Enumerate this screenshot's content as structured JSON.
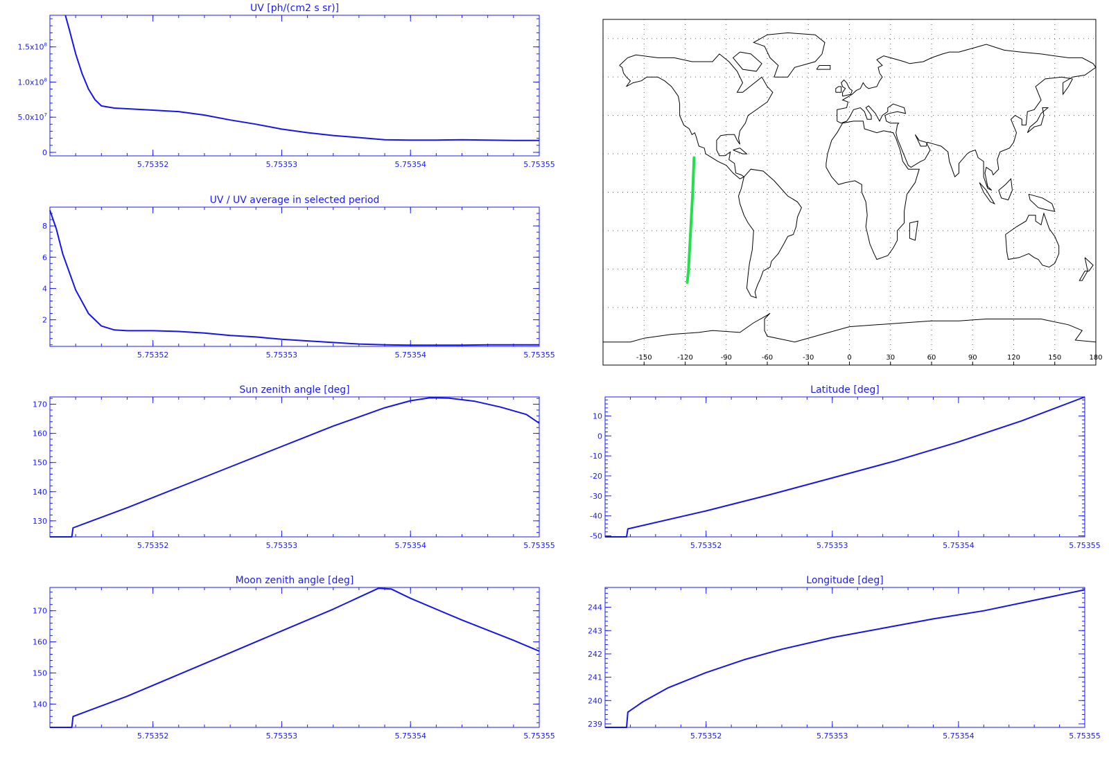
{
  "colors": {
    "axes": "#1a1aff",
    "series": "#1414f0",
    "track": "#22e04a",
    "map_lines": "#000000",
    "grid": "#555555"
  },
  "chart_data": [
    {
      "id": "uv",
      "type": "line",
      "title": "UV [ph/(cm2 s sr)]",
      "xlabel": "",
      "ylabel": "",
      "xlim": [
        5.753512,
        5.75355
      ],
      "ylim": [
        -5000000.0,
        195000000.0
      ],
      "xticks": [
        5.75352,
        5.75353,
        5.75354,
        5.75355
      ],
      "xtick_labels": [
        "5.75352",
        "5.75353",
        "5.75354",
        "5.75355"
      ],
      "yticks": [
        0,
        50000000.0,
        100000000.0,
        150000000.0
      ],
      "ytick_labels": [
        [
          "0",
          ""
        ],
        [
          "5.0x10",
          "7"
        ],
        [
          "1.0x10",
          "8"
        ],
        [
          "1.5x10",
          "8"
        ]
      ],
      "series": [
        {
          "x": [
            5.7535132,
            5.7535135,
            5.753514,
            5.7535145,
            5.753515,
            5.7535155,
            5.753516,
            5.753517,
            5.753518,
            5.75352,
            5.753522,
            5.753524,
            5.753526,
            5.753528,
            5.75353,
            5.753532,
            5.753534,
            5.753536,
            5.753538,
            5.75354,
            5.753542,
            5.753544,
            5.753546,
            5.753548,
            5.75355
          ],
          "y": [
            195000000.0,
            175000000.0,
            140000000.0,
            112000000.0,
            90000000.0,
            75000000.0,
            66000000.0,
            63000000.0,
            62000000.0,
            60000000.0,
            58000000.0,
            53000000.0,
            46000000.0,
            40000000.0,
            33000000.0,
            28000000.0,
            24000000.0,
            21000000.0,
            18000000.0,
            17500000.0,
            17500000.0,
            18000000.0,
            17500000.0,
            17000000.0,
            17000000.0
          ]
        }
      ]
    },
    {
      "id": "uvratio",
      "type": "line",
      "title": "UV / UV average in selected period",
      "xlabel": "",
      "ylabel": "",
      "xlim": [
        5.753512,
        5.75355
      ],
      "ylim": [
        0.3,
        9.2
      ],
      "xticks": [
        5.75352,
        5.75353,
        5.75354,
        5.75355
      ],
      "xtick_labels": [
        "5.75352",
        "5.75353",
        "5.75354",
        "5.75355"
      ],
      "yticks": [
        2,
        4,
        6,
        8
      ],
      "ytick_labels": [
        [
          "2",
          ""
        ],
        [
          "4",
          ""
        ],
        [
          "6",
          ""
        ],
        [
          "8",
          ""
        ]
      ],
      "series": [
        {
          "x": [
            5.753512,
            5.7535125,
            5.753513,
            5.753514,
            5.753515,
            5.753516,
            5.753517,
            5.753518,
            5.75352,
            5.753522,
            5.753524,
            5.753526,
            5.753528,
            5.75353,
            5.753532,
            5.753534,
            5.753536,
            5.753538,
            5.75354,
            5.753542,
            5.753544,
            5.753546,
            5.753548,
            5.75355
          ],
          "y": [
            9.0,
            7.8,
            6.2,
            3.9,
            2.4,
            1.6,
            1.35,
            1.3,
            1.3,
            1.25,
            1.15,
            1.0,
            0.9,
            0.75,
            0.65,
            0.55,
            0.45,
            0.4,
            0.38,
            0.38,
            0.38,
            0.4,
            0.4,
            0.4
          ]
        }
      ]
    },
    {
      "id": "sza",
      "type": "line",
      "title": "Sun zenith angle [deg]",
      "xlabel": "",
      "ylabel": "",
      "xlim": [
        5.753512,
        5.75355
      ],
      "ylim": [
        124.5,
        172.5
      ],
      "xticks": [
        5.75352,
        5.75353,
        5.75354,
        5.75355
      ],
      "xtick_labels": [
        "5.75352",
        "5.75353",
        "5.75354",
        "5.75355"
      ],
      "yticks": [
        130,
        140,
        150,
        160,
        170
      ],
      "ytick_labels": [
        [
          "130",
          ""
        ],
        [
          "140",
          ""
        ],
        [
          "150",
          ""
        ],
        [
          "160",
          ""
        ],
        [
          "170",
          ""
        ]
      ],
      "series": [
        {
          "x": [
            5.753512,
            5.7535137,
            5.7535138,
            5.753518,
            5.753522,
            5.753526,
            5.75353,
            5.753534,
            5.753538,
            5.75354,
            5.7535415,
            5.753543,
            5.753545,
            5.753547,
            5.753549,
            5.75355
          ],
          "y": [
            124.5,
            124.5,
            127.6,
            134.5,
            141.5,
            148.5,
            155.5,
            162.5,
            168.8,
            171.2,
            172.2,
            172.1,
            171.0,
            169.0,
            166.5,
            163.5
          ]
        }
      ]
    },
    {
      "id": "lat",
      "type": "line",
      "title": "Latitude [deg]",
      "xlabel": "",
      "ylabel": "",
      "xlim": [
        5.753512,
        5.75355
      ],
      "ylim": [
        -50.5,
        19.5
      ],
      "xticks": [
        5.75352,
        5.75353,
        5.75354,
        5.75355
      ],
      "xtick_labels": [
        "5.75352",
        "5.75353",
        "5.75354",
        "5.75355"
      ],
      "yticks": [
        -50,
        -40,
        -30,
        -20,
        -10,
        0,
        10
      ],
      "ytick_labels": [
        [
          "-50",
          ""
        ],
        [
          "-40",
          ""
        ],
        [
          "-30",
          ""
        ],
        [
          "-20",
          ""
        ],
        [
          "-10",
          ""
        ],
        [
          "0",
          ""
        ],
        [
          "10",
          ""
        ]
      ],
      "series": [
        {
          "x": [
            5.753512,
            5.7535137,
            5.7535138,
            5.75352,
            5.753525,
            5.75353,
            5.753535,
            5.75354,
            5.753545,
            5.75355
          ],
          "y": [
            -50.5,
            -50.5,
            -46.5,
            -37.5,
            -29.5,
            -21.0,
            -12.5,
            -3.0,
            7.5,
            19.5
          ]
        }
      ]
    },
    {
      "id": "mza",
      "type": "line",
      "title": "Moon zenith angle [deg]",
      "xlabel": "",
      "ylabel": "",
      "xlim": [
        5.753512,
        5.75355
      ],
      "ylim": [
        132.5,
        177.5
      ],
      "xticks": [
        5.75352,
        5.75353,
        5.75354,
        5.75355
      ],
      "xtick_labels": [
        "5.75352",
        "5.75353",
        "5.75354",
        "5.75355"
      ],
      "yticks": [
        140,
        150,
        160,
        170
      ],
      "ytick_labels": [
        [
          "140",
          ""
        ],
        [
          "150",
          ""
        ],
        [
          "160",
          ""
        ],
        [
          "170",
          ""
        ]
      ],
      "series": [
        {
          "x": [
            5.753512,
            5.7535137,
            5.7535138,
            5.753518,
            5.753522,
            5.753526,
            5.75353,
            5.753534,
            5.7535375,
            5.7535385,
            5.75354,
            5.753544,
            5.753548,
            5.75355
          ],
          "y": [
            132.5,
            132.5,
            136.0,
            142.5,
            149.5,
            156.5,
            163.5,
            170.5,
            177.2,
            177.0,
            174.0,
            167.0,
            160.5,
            157.0
          ]
        }
      ]
    },
    {
      "id": "lon",
      "type": "line",
      "title": "Longitude [deg]",
      "xlabel": "",
      "ylabel": "",
      "xlim": [
        5.753512,
        5.75355
      ],
      "ylim": [
        238.85,
        244.85
      ],
      "xticks": [
        5.75352,
        5.75353,
        5.75354,
        5.75355
      ],
      "xtick_labels": [
        "5.75352",
        "5.75353",
        "5.75354",
        "5.75355"
      ],
      "yticks": [
        239,
        240,
        241,
        242,
        243,
        244
      ],
      "ytick_labels": [
        [
          "239",
          ""
        ],
        [
          "240",
          ""
        ],
        [
          "241",
          ""
        ],
        [
          "242",
          ""
        ],
        [
          "243",
          ""
        ],
        [
          "244",
          ""
        ]
      ],
      "series": [
        {
          "x": [
            5.753512,
            5.7535137,
            5.7535138,
            5.753515,
            5.753517,
            5.75352,
            5.753523,
            5.753526,
            5.75353,
            5.753534,
            5.753538,
            5.753542,
            5.753546,
            5.75355
          ],
          "y": [
            238.85,
            238.85,
            239.5,
            239.95,
            240.55,
            241.2,
            241.75,
            242.2,
            242.7,
            243.1,
            243.5,
            243.85,
            244.3,
            244.75
          ]
        }
      ]
    }
  ],
  "map": {
    "xticks": [
      -150,
      -120,
      -90,
      -60,
      -30,
      0,
      30,
      60,
      90,
      120,
      150,
      180
    ],
    "xtick_labels": [
      "-150",
      "-120",
      "-90",
      "-60",
      "-30",
      "0",
      "30",
      "60",
      "90",
      "120",
      "150",
      "180"
    ],
    "track": [
      [
        -113.5,
        18.0
      ],
      [
        -114.5,
        0.0
      ],
      [
        -116.0,
        -20.0
      ],
      [
        -117.5,
        -40.0
      ],
      [
        -118.5,
        -47.0
      ]
    ]
  }
}
